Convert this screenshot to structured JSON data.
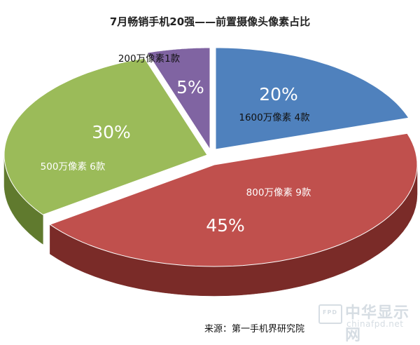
{
  "chart_data": {
    "type": "pie",
    "title": "7月畅销手机20强——前置摄像头像素占比",
    "slices": [
      {
        "category": "1600万像素 4款",
        "value": 20,
        "percent_label": "20%",
        "color": "#4f81bd",
        "side_color": "#2c4d75",
        "label_color": "#111111"
      },
      {
        "category": "800万像素 9款",
        "value": 45,
        "percent_label": "45%",
        "color": "#c0504d",
        "side_color": "#7a2b28",
        "label_color": "#ffffff"
      },
      {
        "category": "500万像素 6款",
        "value": 30,
        "percent_label": "30%",
        "color": "#9bbb59",
        "side_color": "#607a2e",
        "label_color": "#ffffff"
      },
      {
        "category": "200万像素1款",
        "value": 5,
        "percent_label": "5%",
        "color": "#8064a2",
        "side_color": "#4d3a66",
        "label_color": "#111111"
      }
    ],
    "style": "3d-exploded"
  },
  "footer": {
    "source": "来源：第一手机界研究院"
  },
  "watermark": {
    "box_text": "FPD",
    "cn": "中华显示网",
    "en": "chinafpd.net"
  }
}
